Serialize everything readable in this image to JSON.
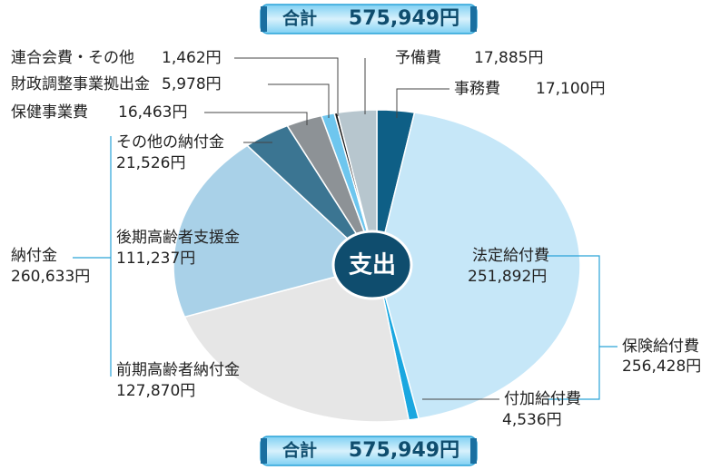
{
  "chart_data": {
    "type": "pie",
    "center_label": "支出",
    "total": {
      "label": "合計",
      "value": 575949,
      "value_label": "575,949円"
    },
    "categories": [
      "事務費",
      "法定給付費",
      "付加給付費",
      "前期高齢者納付金",
      "後期高齢者支援金",
      "その他の納付金",
      "保健事業費",
      "財政調整事業拠出金",
      "連合会費・その他",
      "予備費"
    ],
    "values": [
      17100,
      251892,
      4536,
      127870,
      111237,
      21526,
      16463,
      5978,
      1462,
      17885
    ],
    "value_labels": [
      "17,100円",
      "251,892円",
      "4,536円",
      "127,870円",
      "111,237円",
      "21,526円",
      "16,463円",
      "5,978円",
      "1,462円",
      "17,885円"
    ],
    "colors": [
      "#0e5f86",
      "#c6e7f8",
      "#1aa7e0",
      "#e6e6e6",
      "#a9d1e8",
      "#3b7592",
      "#8d9296",
      "#6ec6ee",
      "#1a1a1a",
      "#b7c6ce"
    ],
    "groups": [
      {
        "name": "保険給付費",
        "value": 256428,
        "value_label": "256,428円"
      },
      {
        "name": "納付金",
        "value": 260633,
        "value_label": "260,633円"
      }
    ]
  }
}
